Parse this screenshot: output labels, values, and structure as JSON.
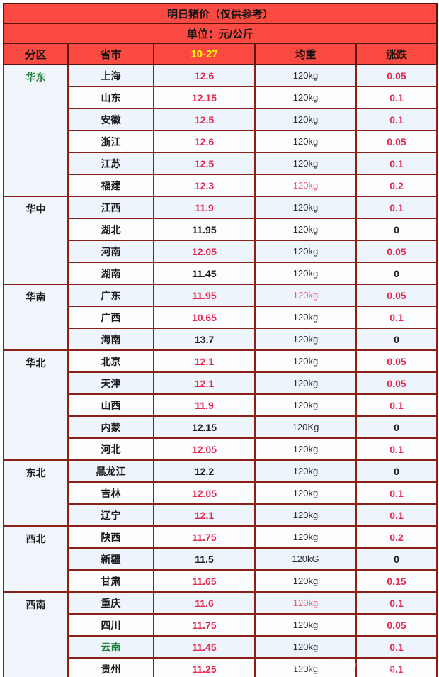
{
  "table": {
    "title": "明日猪价（仅供参考）",
    "unit_label": "单位：元/公斤",
    "columns": [
      "分区",
      "省市",
      "10-27",
      "均重",
      "涨跌"
    ],
    "date_column_color": "#ffff00",
    "colors": {
      "header_bg": "#fb4a41",
      "border": "#8b2016",
      "price_red": "#e5274e",
      "region_green": "#1e8038",
      "date_yellow": "#ffff00",
      "row_odd_bg": "#eef4fb",
      "row_even_bg": "#fcfdff"
    },
    "regions": [
      {
        "name": "华东",
        "name_color": "green",
        "rows": [
          {
            "province": "上海",
            "price": "12.6",
            "price_color": "red",
            "weight": "120kg",
            "weight_color": "default",
            "change": "0.05",
            "change_color": "red"
          },
          {
            "province": "山东",
            "price": "12.15",
            "price_color": "red",
            "weight": "120kg",
            "weight_color": "default",
            "change": "0.1",
            "change_color": "red"
          },
          {
            "province": "安徽",
            "price": "12.5",
            "price_color": "red",
            "weight": "120kg",
            "weight_color": "default",
            "change": "0.1",
            "change_color": "red"
          },
          {
            "province": "浙江",
            "price": "12.6",
            "price_color": "red",
            "weight": "120kg",
            "weight_color": "default",
            "change": "0.05",
            "change_color": "red"
          },
          {
            "province": "江苏",
            "price": "12.5",
            "price_color": "red",
            "weight": "120kg",
            "weight_color": "default",
            "change": "0.1",
            "change_color": "red"
          },
          {
            "province": "福建",
            "price": "12.3",
            "price_color": "red",
            "weight": "120kg",
            "weight_color": "red",
            "change": "0.2",
            "change_color": "red"
          }
        ]
      },
      {
        "name": "华中",
        "name_color": "black",
        "rows": [
          {
            "province": "江西",
            "price": "11.9",
            "price_color": "red",
            "weight": "120kg",
            "weight_color": "default",
            "change": "0.1",
            "change_color": "red"
          },
          {
            "province": "湖北",
            "price": "11.95",
            "price_color": "black",
            "weight": "120kg",
            "weight_color": "default",
            "change": "0",
            "change_color": "black"
          },
          {
            "province": "河南",
            "price": "12.05",
            "price_color": "red",
            "weight": "120kg",
            "weight_color": "default",
            "change": "0.05",
            "change_color": "red"
          },
          {
            "province": "湖南",
            "price": "11.45",
            "price_color": "black",
            "weight": "120kg",
            "weight_color": "default",
            "change": "0",
            "change_color": "black"
          }
        ]
      },
      {
        "name": "华南",
        "name_color": "black",
        "rows": [
          {
            "province": "广东",
            "price": "11.95",
            "price_color": "red",
            "weight": "120kg",
            "weight_color": "red",
            "change": "0.05",
            "change_color": "red"
          },
          {
            "province": "广西",
            "price": "10.65",
            "price_color": "red",
            "weight": "120kg",
            "weight_color": "default",
            "change": "0.1",
            "change_color": "red"
          },
          {
            "province": "海南",
            "price": "13.7",
            "price_color": "black",
            "weight": "120kg",
            "weight_color": "default",
            "change": "0",
            "change_color": "black"
          }
        ]
      },
      {
        "name": "华北",
        "name_color": "black",
        "rows": [
          {
            "province": "北京",
            "price": "12.1",
            "price_color": "red",
            "weight": "120kg",
            "weight_color": "default",
            "change": "0.05",
            "change_color": "red"
          },
          {
            "province": "天津",
            "price": "12.1",
            "price_color": "red",
            "weight": "120kg",
            "weight_color": "default",
            "change": "0.05",
            "change_color": "red"
          },
          {
            "province": "山西",
            "price": "11.9",
            "price_color": "red",
            "weight": "120kg",
            "weight_color": "default",
            "change": "0.1",
            "change_color": "red"
          },
          {
            "province": "内蒙",
            "price": "12.15",
            "price_color": "black",
            "weight": "120Kg",
            "weight_color": "default",
            "change": "0",
            "change_color": "black"
          },
          {
            "province": "河北",
            "price": "12.05",
            "price_color": "red",
            "weight": "120kg",
            "weight_color": "default",
            "change": "0.1",
            "change_color": "red"
          }
        ]
      },
      {
        "name": "东北",
        "name_color": "black",
        "rows": [
          {
            "province": "黑龙江",
            "price": "12.2",
            "price_color": "black",
            "weight": "120kg",
            "weight_color": "default",
            "change": "0",
            "change_color": "black"
          },
          {
            "province": "吉林",
            "price": "12.05",
            "price_color": "red",
            "weight": "120kg",
            "weight_color": "default",
            "change": "0.1",
            "change_color": "red"
          },
          {
            "province": "辽宁",
            "price": "12.1",
            "price_color": "red",
            "weight": "120kg",
            "weight_color": "default",
            "change": "0.1",
            "change_color": "red"
          }
        ]
      },
      {
        "name": "西北",
        "name_color": "black",
        "rows": [
          {
            "province": "陕西",
            "price": "11.75",
            "price_color": "red",
            "weight": "120kg",
            "weight_color": "default",
            "change": "0.2",
            "change_color": "red"
          },
          {
            "province": "新疆",
            "price": "11.5",
            "price_color": "black",
            "weight": "120kG",
            "weight_color": "default",
            "change": "0",
            "change_color": "black"
          },
          {
            "province": "甘肃",
            "price": "11.65",
            "price_color": "red",
            "weight": "120kg",
            "weight_color": "default",
            "change": "0.15",
            "change_color": "red"
          }
        ]
      },
      {
        "name": "西南",
        "name_color": "black",
        "rows": [
          {
            "province": "重庆",
            "price": "11.6",
            "price_color": "red",
            "weight": "120kg",
            "weight_color": "red",
            "change": "0.1",
            "change_color": "red"
          },
          {
            "province": "四川",
            "price": "11.75",
            "price_color": "red",
            "weight": "120kg",
            "weight_color": "default",
            "change": "0.05",
            "change_color": "red"
          },
          {
            "province": "云南",
            "province_color": "green",
            "price": "11.45",
            "price_color": "red",
            "weight": "120kg",
            "weight_color": "default",
            "change": "0.1",
            "change_color": "red"
          },
          {
            "province": "贵州",
            "price": "11.25",
            "price_color": "red",
            "weight": "120kg",
            "weight_color": "default",
            "change": "0.1",
            "change_color": "red"
          }
        ]
      }
    ],
    "watermark": "快传号 / 猪友巴巴"
  }
}
